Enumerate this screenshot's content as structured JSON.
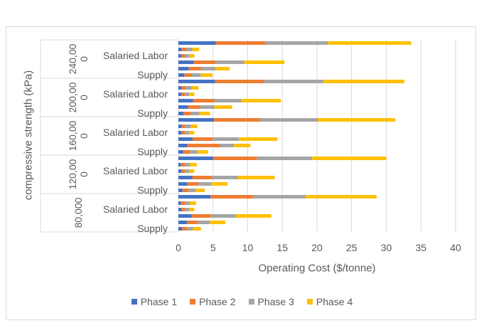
{
  "chart_data": {
    "type": "bar",
    "orientation": "horizontal",
    "stacked": true,
    "xlabel": "Operating Cost ($/tonne)",
    "ylabel": "compressive strength (kPa)",
    "xlim": [
      0,
      40
    ],
    "xticks": [
      "0",
      "5",
      "10",
      "15",
      "20",
      "25",
      "30",
      "35",
      "40"
    ],
    "xtick_values": [
      0,
      5,
      10,
      15,
      20,
      25,
      30,
      35,
      40
    ],
    "grid": true,
    "legend_position": "bottom",
    "category_labels": [
      "Supply",
      "",
      "",
      "Salaried Labor",
      "",
      ""
    ],
    "series": [
      {
        "name": "Phase 1",
        "color": "#4472c4"
      },
      {
        "name": "Phase 2",
        "color": "#ed7d31"
      },
      {
        "name": "Phase 3",
        "color": "#a5a5a5"
      },
      {
        "name": "Phase 4",
        "color": "#ffc000"
      }
    ],
    "groups": [
      {
        "label": "80,000",
        "bars": [
          [
            0.55,
            0.7,
            0.85,
            1.15
          ],
          [
            1.25,
            1.45,
            1.85,
            2.2
          ],
          [
            1.9,
            2.8,
            3.6,
            5.1
          ],
          [
            0.45,
            0.5,
            0.6,
            0.75
          ],
          [
            0.35,
            0.6,
            0.7,
            0.9
          ],
          [
            4.65,
            6.1,
            7.6,
            10.25
          ]
        ]
      },
      {
        "label": "120,000",
        "bars": [
          [
            0.6,
            0.85,
            1.05,
            1.3
          ],
          [
            1.3,
            1.6,
            1.85,
            2.35
          ],
          [
            2.0,
            2.9,
            3.7,
            5.3
          ],
          [
            0.45,
            0.5,
            0.6,
            0.75
          ],
          [
            0.35,
            0.6,
            0.7,
            1.0
          ],
          [
            5.0,
            6.35,
            7.95,
            10.7
          ]
        ]
      },
      {
        "label": "160,000",
        "bars": [
          [
            0.7,
            1.0,
            1.05,
            1.5
          ],
          [
            1.3,
            4.7,
            2.0,
            2.4
          ],
          [
            2.05,
            2.9,
            3.8,
            5.55
          ],
          [
            0.45,
            0.5,
            0.6,
            0.75
          ],
          [
            0.45,
            0.5,
            0.85,
            0.95
          ],
          [
            5.15,
            6.7,
            8.25,
            11.2
          ]
        ]
      },
      {
        "label": "200,000",
        "bars": [
          [
            0.75,
            1.05,
            1.25,
            1.5
          ],
          [
            1.4,
            1.75,
            2.05,
            2.55
          ],
          [
            2.1,
            3.1,
            3.9,
            5.7
          ],
          [
            0.4,
            0.55,
            0.6,
            0.75
          ],
          [
            0.45,
            0.6,
            0.85,
            1.0
          ],
          [
            5.3,
            7.05,
            8.6,
            11.65
          ]
        ]
      },
      {
        "label": "240,000",
        "bars": [
          [
            0.85,
            1.05,
            1.35,
            1.65
          ],
          [
            1.5,
            1.85,
            2.05,
            2.0
          ],
          [
            2.2,
            3.2,
            4.1,
            5.8
          ],
          [
            0.4,
            0.55,
            0.6,
            0.75
          ],
          [
            0.45,
            0.7,
            0.85,
            1.0
          ],
          [
            5.4,
            7.2,
            9.0,
            12.0
          ]
        ]
      }
    ]
  }
}
